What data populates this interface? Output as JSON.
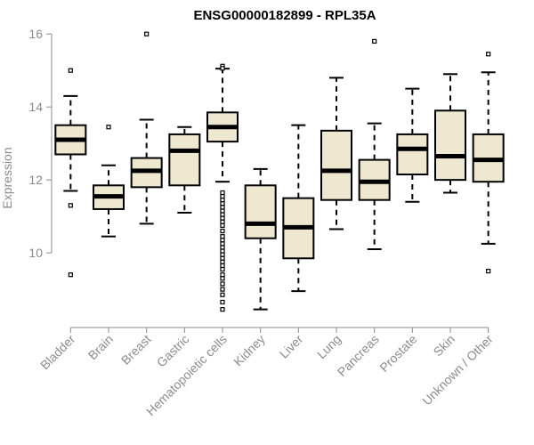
{
  "chart_data": {
    "type": "box",
    "title": "ENSG00000182899 - RPL35A",
    "xlabel": "",
    "ylabel": "Expression",
    "ylim": [
      8.1,
      16.2
    ],
    "yticks": [
      10,
      12,
      14,
      16
    ],
    "grid": false,
    "colors": {
      "box_fill": "#efe8d0",
      "box_stroke": "#000000",
      "axis": "#8c8c8c",
      "label": "#8c8c8c",
      "title": "#000000"
    },
    "categories": [
      "Bladder",
      "Brain",
      "Breast",
      "Gastric",
      "Hematopoietic cells",
      "Kidney",
      "Liver",
      "Lung",
      "Pancreas",
      "Prostate",
      "Skin",
      "Unknown / Other"
    ],
    "boxes": [
      {
        "name": "Bladder",
        "whisker_low": 11.7,
        "q1": 12.7,
        "median": 13.1,
        "q3": 13.5,
        "whisker_high": 14.3,
        "outliers": [
          15.0,
          11.3,
          9.4
        ]
      },
      {
        "name": "Brain",
        "whisker_low": 10.45,
        "q1": 11.2,
        "median": 11.55,
        "q3": 11.85,
        "whisker_high": 12.4,
        "outliers": [
          13.45
        ]
      },
      {
        "name": "Breast",
        "whisker_low": 10.8,
        "q1": 11.8,
        "median": 12.25,
        "q3": 12.6,
        "whisker_high": 13.65,
        "outliers": [
          16.0
        ]
      },
      {
        "name": "Gastric",
        "whisker_low": 11.1,
        "q1": 11.85,
        "median": 12.8,
        "q3": 13.25,
        "whisker_high": 13.45,
        "outliers": []
      },
      {
        "name": "Hematopoietic cells",
        "whisker_low": 11.95,
        "q1": 13.05,
        "median": 13.45,
        "q3": 13.85,
        "whisker_high": 15.05,
        "outliers": [
          15.12,
          15.06,
          11.65,
          11.55,
          11.45,
          11.35,
          11.25,
          11.15,
          11.05,
          10.95,
          10.85,
          10.75,
          10.6,
          10.45,
          10.35,
          10.25,
          10.15,
          10.05,
          9.95,
          9.85,
          9.75,
          9.65,
          9.55,
          9.4,
          9.3,
          9.15,
          9.0,
          8.85,
          8.65,
          8.45
        ]
      },
      {
        "name": "Kidney",
        "whisker_low": 8.45,
        "q1": 10.4,
        "median": 10.8,
        "q3": 11.85,
        "whisker_high": 12.3,
        "outliers": []
      },
      {
        "name": "Liver",
        "whisker_low": 8.95,
        "q1": 9.85,
        "median": 10.7,
        "q3": 11.5,
        "whisker_high": 13.5,
        "outliers": []
      },
      {
        "name": "Lung",
        "whisker_low": 10.65,
        "q1": 11.45,
        "median": 12.25,
        "q3": 13.35,
        "whisker_high": 14.8,
        "outliers": []
      },
      {
        "name": "Pancreas",
        "whisker_low": 10.1,
        "q1": 11.45,
        "median": 11.95,
        "q3": 12.55,
        "whisker_high": 13.55,
        "outliers": [
          15.8
        ]
      },
      {
        "name": "Prostate",
        "whisker_low": 11.4,
        "q1": 12.15,
        "median": 12.85,
        "q3": 13.25,
        "whisker_high": 14.5,
        "outliers": []
      },
      {
        "name": "Skin",
        "whisker_low": 11.65,
        "q1": 12.0,
        "median": 12.65,
        "q3": 13.9,
        "whisker_high": 14.9,
        "outliers": []
      },
      {
        "name": "Unknown / Other",
        "whisker_low": 10.25,
        "q1": 11.95,
        "median": 12.55,
        "q3": 13.25,
        "whisker_high": 14.95,
        "outliers": [
          15.45,
          9.5
        ]
      }
    ]
  }
}
